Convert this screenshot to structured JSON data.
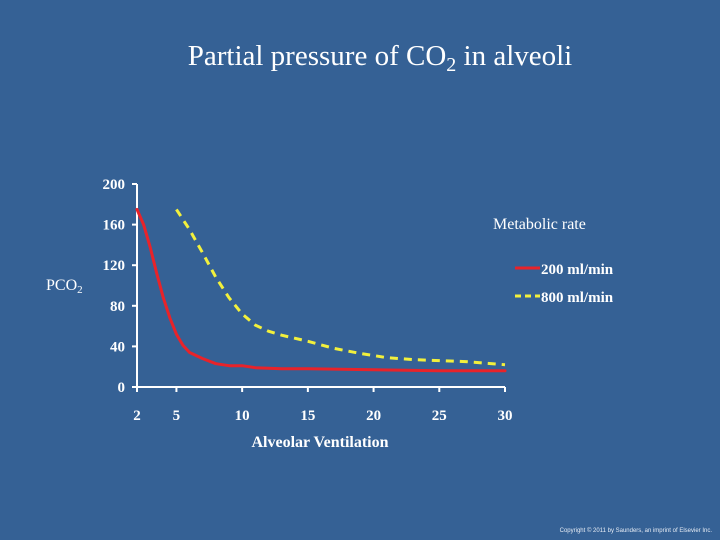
{
  "slide": {
    "title_prefix": "Partial pressure of CO",
    "title_sub": "2",
    "title_suffix": " in alveoli",
    "ylabel_main": "PCO",
    "ylabel_sub": "2",
    "legend_title": "Metabolic rate",
    "copyright": "Copyright © 2011 by Saunders, an imprint of Elsevier Inc.",
    "background_color": "#356195"
  },
  "chart_data": {
    "type": "line",
    "title": "Partial pressure of CO2 in alveoli",
    "xlabel": "Alveolar Ventilation",
    "ylabel": "PCO2",
    "xticks": [
      2,
      5,
      10,
      15,
      20,
      25,
      30
    ],
    "yticks": [
      0,
      40,
      80,
      120,
      160,
      200
    ],
    "xlim": [
      2,
      30
    ],
    "ylim": [
      0,
      200
    ],
    "grid": false,
    "legend_position": "right",
    "series": [
      {
        "name": "200 ml/min",
        "color": "#e8232a",
        "style": "solid",
        "points": [
          [
            2,
            175
          ],
          [
            2.5,
            160
          ],
          [
            3,
            138
          ],
          [
            3.5,
            112
          ],
          [
            4,
            88
          ],
          [
            4.5,
            68
          ],
          [
            5,
            52
          ],
          [
            5.5,
            41
          ],
          [
            6,
            34
          ],
          [
            7,
            28
          ],
          [
            8,
            23
          ],
          [
            9,
            21
          ],
          [
            10,
            21
          ],
          [
            11,
            19
          ],
          [
            13,
            18
          ],
          [
            15,
            18
          ],
          [
            20,
            17
          ],
          [
            25,
            16
          ],
          [
            30,
            16
          ]
        ]
      },
      {
        "name": "800 ml/min",
        "color": "#f2f03c",
        "style": "dashed",
        "points": [
          [
            5,
            175
          ],
          [
            6,
            155
          ],
          [
            7,
            132
          ],
          [
            8,
            108
          ],
          [
            9,
            88
          ],
          [
            10,
            72
          ],
          [
            11,
            61
          ],
          [
            12,
            55
          ],
          [
            13,
            51
          ],
          [
            15,
            45
          ],
          [
            17,
            38
          ],
          [
            19,
            33
          ],
          [
            21,
            29
          ],
          [
            23,
            27
          ],
          [
            25,
            26
          ],
          [
            27,
            25
          ],
          [
            30,
            22
          ]
        ]
      }
    ]
  }
}
